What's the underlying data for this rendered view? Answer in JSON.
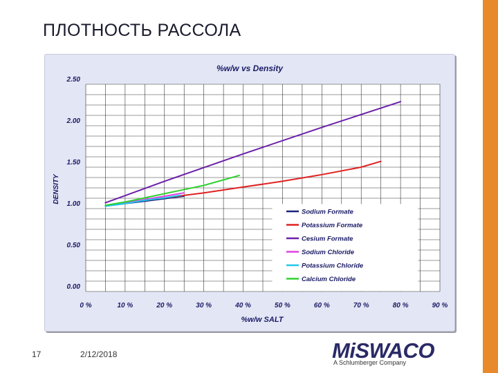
{
  "slide": {
    "title": "ПЛОТНОСТЬ РАССОЛА",
    "number": "17",
    "date": "2/12/2018"
  },
  "logo": {
    "name": "MiSWACO",
    "tagline": "A Schlumberger Company"
  },
  "colors": {
    "accent_bar": "#e8892b",
    "chart_background": "#e3e6f4",
    "plot_background": "#ffffff",
    "grid": "#333333",
    "tick_label": "#1a1a66"
  },
  "chart_data": {
    "type": "line",
    "title": "%w/w vs Density",
    "xlabel": "%w/w SALT",
    "ylabel": "DENSITY",
    "xlim": [
      0,
      90
    ],
    "ylim": [
      0,
      2.5
    ],
    "x_ticks": [
      0,
      10,
      20,
      30,
      40,
      50,
      60,
      70,
      80,
      90
    ],
    "x_tick_labels": [
      "0 %",
      "10 %",
      "20 %",
      "30 %",
      "40 %",
      "50 %",
      "60 %",
      "70 %",
      "80 %",
      "90 %"
    ],
    "y_ticks": [
      0,
      0.5,
      1.0,
      1.5,
      2.0,
      2.5
    ],
    "y_tick_labels": [
      "0.00",
      "0.50",
      "1.00",
      "1.50",
      "2.00",
      "2.50"
    ],
    "grid": true,
    "legend_position": "lower-right",
    "series": [
      {
        "name": "Sodium Formate",
        "color": "#1a237e",
        "x": [
          5,
          10,
          15,
          20,
          25
        ],
        "y": [
          1.03,
          1.06,
          1.09,
          1.12,
          1.15
        ]
      },
      {
        "name": "Potassium Formate",
        "color": "#e02020",
        "x": [
          10,
          20,
          30,
          40,
          50,
          60,
          70,
          75
        ],
        "y": [
          1.07,
          1.13,
          1.19,
          1.26,
          1.33,
          1.41,
          1.5,
          1.57
        ]
      },
      {
        "name": "Cesium Formate",
        "color": "#6a1fa8",
        "x": [
          5,
          20,
          40,
          60,
          80
        ],
        "y": [
          1.07,
          1.33,
          1.66,
          1.98,
          2.29
        ]
      },
      {
        "name": "Sodium Chloride",
        "color": "#e040e0",
        "x": [
          5,
          10,
          15,
          20,
          25
        ],
        "y": [
          1.04,
          1.07,
          1.11,
          1.15,
          1.19
        ]
      },
      {
        "name": "Potassium Chloride",
        "color": "#20c8e8",
        "x": [
          5,
          10,
          15,
          20,
          24
        ],
        "y": [
          1.03,
          1.06,
          1.1,
          1.13,
          1.16
        ]
      },
      {
        "name": "Calcium Chloride",
        "color": "#30d030",
        "x": [
          5,
          10,
          20,
          30,
          39
        ],
        "y": [
          1.04,
          1.08,
          1.18,
          1.28,
          1.4
        ]
      }
    ]
  }
}
